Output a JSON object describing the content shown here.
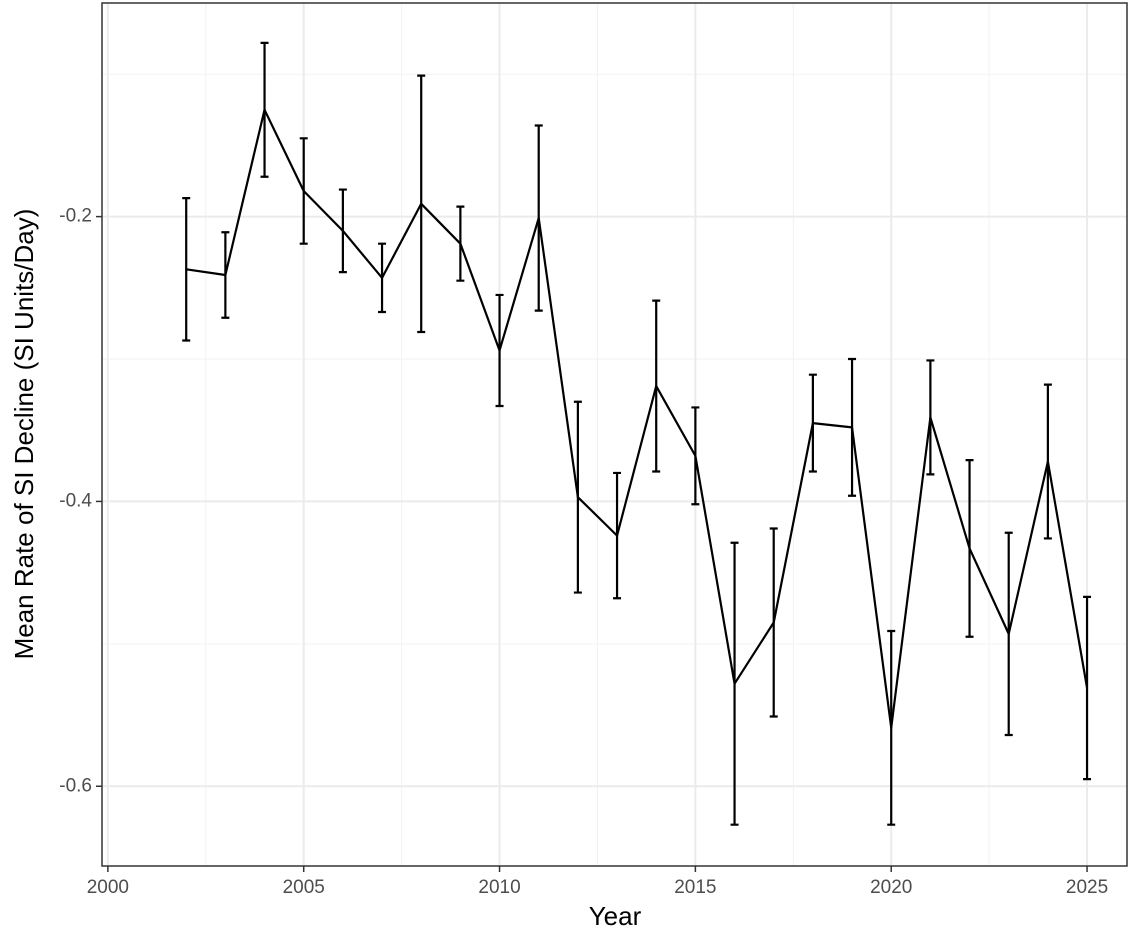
{
  "chart_data": {
    "type": "line",
    "x_label": "Year",
    "y_label": "Mean Rate of SI Decline (SI Units/Day)",
    "x": [
      2002,
      2003,
      2004,
      2005,
      2006,
      2007,
      2008,
      2009,
      2010,
      2011,
      2012,
      2013,
      2014,
      2015,
      2016,
      2017,
      2018,
      2019,
      2020,
      2021,
      2022,
      2023,
      2024,
      2025
    ],
    "values": [
      -0.237,
      -0.241,
      -0.125,
      -0.182,
      -0.21,
      -0.243,
      -0.191,
      -0.219,
      -0.294,
      -0.201,
      -0.397,
      -0.424,
      -0.319,
      -0.368,
      -0.528,
      -0.485,
      -0.345,
      -0.348,
      -0.559,
      -0.341,
      -0.433,
      -0.493,
      -0.372,
      -0.531
    ],
    "errors": [
      0.05,
      0.03,
      0.047,
      0.037,
      0.029,
      0.024,
      0.09,
      0.026,
      0.039,
      0.065,
      0.067,
      0.044,
      0.06,
      0.034,
      0.099,
      0.066,
      0.034,
      0.048,
      0.068,
      0.04,
      0.062,
      0.071,
      0.054,
      0.064
    ],
    "color": "#000000",
    "xlim": [
      1999.85,
      2026.02
    ],
    "ylim": [
      -0.656,
      -0.05
    ],
    "xticks": [
      2000,
      2005,
      2010,
      2015,
      2020,
      2025
    ],
    "yticks": [
      -0.6,
      -0.4,
      -0.2
    ],
    "grid": true
  }
}
